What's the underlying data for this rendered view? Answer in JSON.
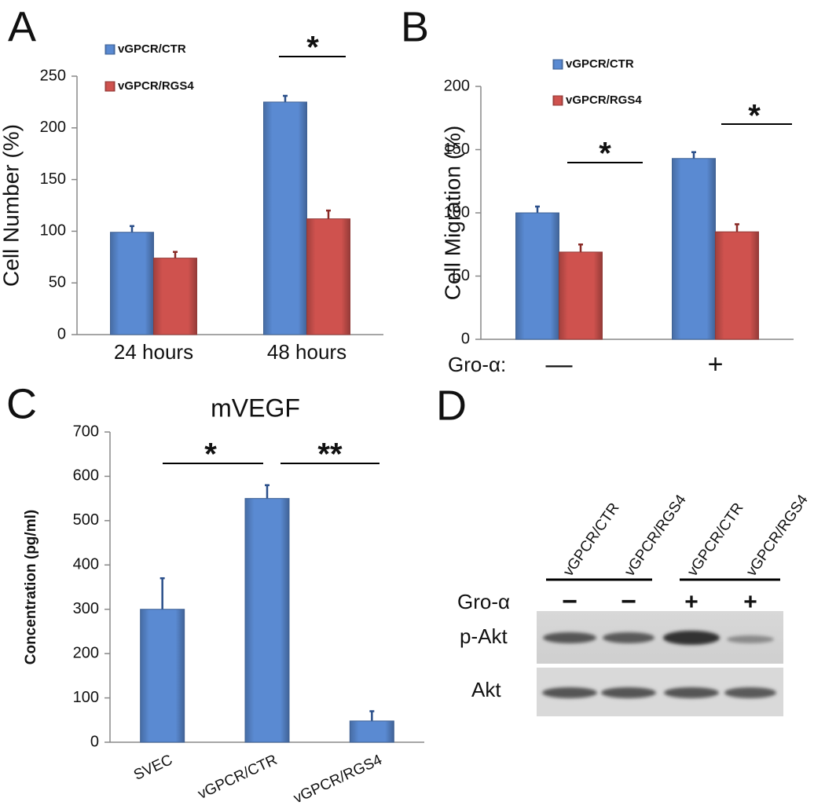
{
  "chart_data": [
    {
      "type": "bar",
      "panel": "A",
      "ylabel": "Cell Number (%)",
      "categories": [
        "24 hours",
        "48 hours"
      ],
      "series": [
        {
          "name": "vGPCR/CTR",
          "color": "#5a8ad2",
          "values": [
            99,
            225
          ],
          "errors": [
            6,
            6
          ]
        },
        {
          "name": "vGPCR/RGS4",
          "color": "#cf524e",
          "values": [
            74,
            112
          ],
          "errors": [
            6,
            8
          ]
        }
      ],
      "ylim": [
        0,
        250
      ],
      "yticks": [
        0,
        50,
        100,
        150,
        200,
        250
      ],
      "annotations": [
        "*"
      ]
    },
    {
      "type": "bar",
      "panel": "B",
      "ylabel": "Cell Migration (%)",
      "xlabel": "Gro-α:",
      "categories": [
        "—",
        "+"
      ],
      "series": [
        {
          "name": "vGPCR/CTR",
          "color": "#5a8ad2",
          "values": [
            100,
            143
          ],
          "errors": [
            5,
            5
          ]
        },
        {
          "name": "vGPCR/RGS4",
          "color": "#cf524e",
          "values": [
            69,
            85
          ],
          "errors": [
            6,
            6
          ]
        }
      ],
      "ylim": [
        0,
        200
      ],
      "yticks": [
        0,
        50,
        100,
        150,
        200
      ],
      "annotations": [
        "*",
        "*"
      ]
    },
    {
      "type": "bar",
      "panel": "C",
      "title": "mVEGF",
      "ylabel": "Concentration (pg/ml)",
      "categories": [
        "SVEC",
        "vGPCR/CTR",
        "vGPCR/RGS4"
      ],
      "values": [
        300,
        550,
        48
      ],
      "errors": [
        70,
        30,
        22
      ],
      "color": "#5a8ad2",
      "ylim": [
        0,
        700
      ],
      "yticks": [
        0,
        100,
        200,
        300,
        400,
        500,
        600,
        700
      ],
      "annotations": [
        "*",
        "**"
      ]
    }
  ],
  "blot": {
    "panel": "D",
    "lanes": [
      "vGPCR/CTR",
      "vGPCR/RGS4",
      "vGPCR/CTR",
      "vGPCR/RGS4"
    ],
    "treatment_label": "Gro-α",
    "treatments": [
      "−",
      "−",
      "+",
      "+"
    ],
    "rows": [
      "p-Akt",
      "Akt"
    ]
  }
}
